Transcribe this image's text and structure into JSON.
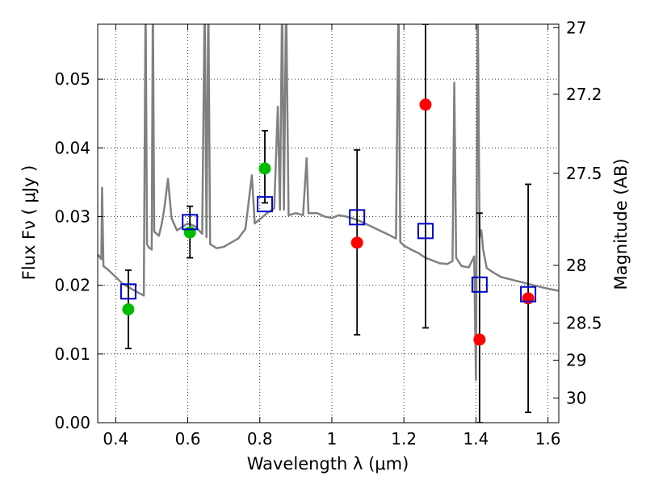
{
  "chart_data": {
    "type": "scatter",
    "title": "",
    "xlabel": "Wavelength  λ (μm)",
    "ylabel_left": "Flux  Fν  ( μJy )",
    "ylabel_right": "Magnitude (AB)",
    "xlim": [
      0.35,
      1.63
    ],
    "ylim": [
      0.0,
      0.058
    ],
    "grid": true,
    "x_ticks": [
      0.4,
      0.6,
      0.8,
      1.0,
      1.2,
      1.4,
      1.6
    ],
    "x_tick_labels": [
      "0.4",
      "0.6",
      "0.8",
      "1",
      "1.2",
      "1.4",
      "1.6"
    ],
    "y_ticks": [
      0.0,
      0.01,
      0.02,
      0.03,
      0.04,
      0.05
    ],
    "y_tick_labels": [
      "0.00",
      "0.01",
      "0.02",
      "0.03",
      "0.04",
      "0.05"
    ],
    "right_ticks": [
      {
        "label": "27",
        "flux": 0.0575
      },
      {
        "label": "27.2",
        "flux": 0.0478
      },
      {
        "label": "27.5",
        "flux": 0.0363
      },
      {
        "label": "28",
        "flux": 0.0229
      },
      {
        "label": "28.5",
        "flux": 0.0145
      },
      {
        "label": "29",
        "flux": 0.0091
      },
      {
        "label": "30",
        "flux": 0.0036
      }
    ],
    "series": [
      {
        "marker": "circle",
        "color": "#00bb00",
        "points": [
          {
            "x": 0.435,
            "y": 0.0165,
            "yerr_low": 0.0108,
            "yerr_high": 0.0222
          },
          {
            "x": 0.606,
            "y": 0.0277,
            "yerr_low": 0.024,
            "yerr_high": 0.0315
          },
          {
            "x": 0.814,
            "y": 0.037,
            "yerr_low": 0.032,
            "yerr_high": 0.0425
          }
        ]
      },
      {
        "marker": "circle",
        "color": "#ff0000",
        "points": [
          {
            "x": 1.07,
            "y": 0.0262,
            "yerr_low": 0.0128,
            "yerr_high": 0.0397
          },
          {
            "x": 1.26,
            "y": 0.0463,
            "yerr_low": 0.0138,
            "yerr_high": 0.058
          },
          {
            "x": 1.41,
            "y": 0.0121,
            "yerr_low": 0.0,
            "yerr_high": 0.0305
          },
          {
            "x": 1.545,
            "y": 0.0181,
            "yerr_low": 0.0015,
            "yerr_high": 0.0347
          }
        ]
      },
      {
        "marker": "open-square",
        "color": "#0000cc",
        "points": [
          {
            "x": 0.435,
            "y": 0.0191
          },
          {
            "x": 0.606,
            "y": 0.0292
          },
          {
            "x": 0.814,
            "y": 0.0318
          },
          {
            "x": 1.07,
            "y": 0.0299
          },
          {
            "x": 1.26,
            "y": 0.0279
          },
          {
            "x": 1.41,
            "y": 0.0201
          },
          {
            "x": 1.545,
            "y": 0.0187
          }
        ]
      },
      {
        "marker": "line",
        "color": "#808080",
        "points": [
          [
            0.35,
            0.0245
          ],
          [
            0.36,
            0.0238
          ],
          [
            0.362,
            0.0342
          ],
          [
            0.366,
            0.0228
          ],
          [
            0.38,
            0.0222
          ],
          [
            0.4,
            0.0212
          ],
          [
            0.42,
            0.0202
          ],
          [
            0.44,
            0.0196
          ],
          [
            0.46,
            0.019
          ],
          [
            0.478,
            0.0185
          ],
          [
            0.483,
            0.062
          ],
          [
            0.487,
            0.026
          ],
          [
            0.492,
            0.0255
          ],
          [
            0.5,
            0.0252
          ],
          [
            0.503,
            0.062
          ],
          [
            0.507,
            0.0278
          ],
          [
            0.52,
            0.0272
          ],
          [
            0.528,
            0.029
          ],
          [
            0.535,
            0.0312
          ],
          [
            0.545,
            0.0355
          ],
          [
            0.555,
            0.0298
          ],
          [
            0.57,
            0.028
          ],
          [
            0.585,
            0.0285
          ],
          [
            0.6,
            0.029
          ],
          [
            0.62,
            0.0286
          ],
          [
            0.64,
            0.0275
          ],
          [
            0.647,
            0.062
          ],
          [
            0.652,
            0.027
          ],
          [
            0.657,
            0.062
          ],
          [
            0.662,
            0.026
          ],
          [
            0.68,
            0.0254
          ],
          [
            0.7,
            0.0256
          ],
          [
            0.72,
            0.0262
          ],
          [
            0.74,
            0.0268
          ],
          [
            0.76,
            0.0282
          ],
          [
            0.778,
            0.036
          ],
          [
            0.786,
            0.029
          ],
          [
            0.8,
            0.0296
          ],
          [
            0.82,
            0.0305
          ],
          [
            0.84,
            0.0312
          ],
          [
            0.85,
            0.046
          ],
          [
            0.856,
            0.031
          ],
          [
            0.862,
            0.062
          ],
          [
            0.867,
            0.031
          ],
          [
            0.873,
            0.062
          ],
          [
            0.88,
            0.0302
          ],
          [
            0.9,
            0.0305
          ],
          [
            0.92,
            0.0302
          ],
          [
            0.93,
            0.0385
          ],
          [
            0.935,
            0.0305
          ],
          [
            0.96,
            0.0305
          ],
          [
            0.98,
            0.03
          ],
          [
            1.0,
            0.0298
          ],
          [
            1.02,
            0.0302
          ],
          [
            1.04,
            0.03
          ],
          [
            1.06,
            0.0297
          ],
          [
            1.08,
            0.0293
          ],
          [
            1.1,
            0.0288
          ],
          [
            1.12,
            0.0283
          ],
          [
            1.14,
            0.0278
          ],
          [
            1.16,
            0.0273
          ],
          [
            1.178,
            0.0268
          ],
          [
            1.185,
            0.062
          ],
          [
            1.19,
            0.0263
          ],
          [
            1.2,
            0.0258
          ],
          [
            1.22,
            0.0252
          ],
          [
            1.24,
            0.0247
          ],
          [
            1.26,
            0.024
          ],
          [
            1.28,
            0.0236
          ],
          [
            1.3,
            0.0232
          ],
          [
            1.32,
            0.0231
          ],
          [
            1.335,
            0.0235
          ],
          [
            1.34,
            0.0495
          ],
          [
            1.345,
            0.024
          ],
          [
            1.36,
            0.0228
          ],
          [
            1.38,
            0.0226
          ],
          [
            1.395,
            0.0242
          ],
          [
            1.4,
            0.0062
          ],
          [
            1.405,
            0.062
          ],
          [
            1.41,
            0.027
          ],
          [
            1.415,
            0.028
          ],
          [
            1.42,
            0.0252
          ],
          [
            1.43,
            0.0225
          ],
          [
            1.45,
            0.0218
          ],
          [
            1.47,
            0.0212
          ],
          [
            1.5,
            0.0208
          ],
          [
            1.53,
            0.0204
          ],
          [
            1.56,
            0.02
          ],
          [
            1.6,
            0.0195
          ],
          [
            1.63,
            0.0192
          ]
        ]
      }
    ]
  }
}
